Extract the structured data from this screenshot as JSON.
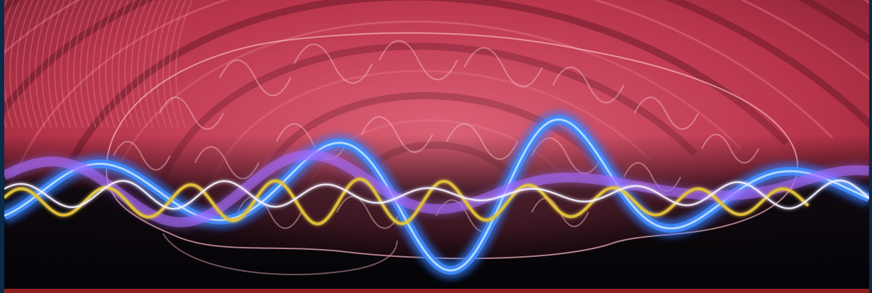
{
  "image": {
    "subject": "brain-with-brainwaves",
    "colors": {
      "frame": "#0b2a4a",
      "background_dark": "#07070d",
      "tunnel_red": "#c2394e",
      "tunnel_shadow": "#5e1523",
      "brain_pink": "#f3a5b4",
      "wave_blue": "#3f8dff",
      "wave_violet": "#a66bff",
      "wave_yellow": "#e2c13a",
      "wave_white": "#f5f1ff",
      "bottom_strip": "#8e1f1f"
    }
  }
}
